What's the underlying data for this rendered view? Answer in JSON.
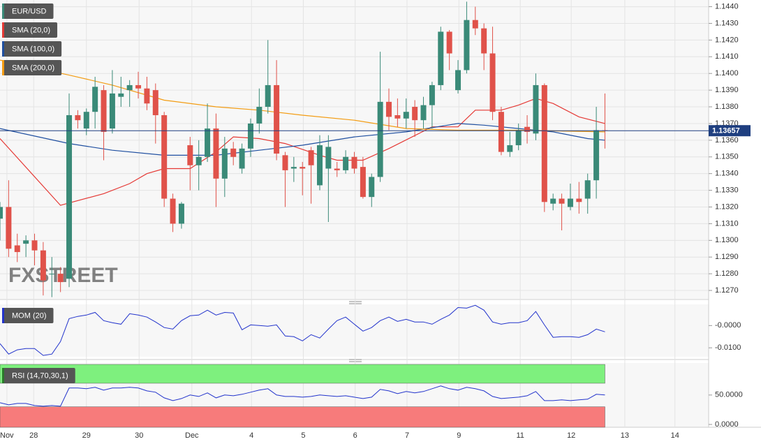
{
  "chart_data": [
    {
      "type": "candlestick",
      "name": "EUR/USD",
      "watermark": "FXSTREET",
      "up_color": "#3a8a78",
      "down_color": "#e0524a",
      "open": [
        1.1313,
        1.132,
        1.1297,
        1.1298,
        1.13,
        1.1294,
        1.128,
        1.128,
        1.1277,
        1.1375,
        1.1367,
        1.1377,
        1.139,
        1.1367,
        1.1386,
        1.139,
        1.1393,
        1.1391,
        1.139,
        1.1375,
        1.1325,
        1.131,
        1.1357,
        1.1345,
        1.135,
        1.1367,
        1.1337,
        1.1355,
        1.1343,
        1.1355,
        1.137,
        1.138,
        1.1393,
        1.1351,
        1.1343,
        1.1344,
        1.1354,
        1.1333,
        1.1343,
        1.1343,
        1.1342,
        1.135,
        1.1344,
        1.1326,
        1.1338,
        1.1383,
        1.1375,
        1.1373,
        1.138,
        1.1372,
        1.1381,
        1.1393,
        1.1425,
        1.139,
        1.1402,
        1.1432,
        1.1427,
        1.1412,
        1.1377,
        1.1353,
        1.1357,
        1.1368,
        1.1364,
        1.1393,
        1.1322,
        1.1325,
        1.132,
        1.1325,
        1.1325,
        1.1336,
        1.1366
      ],
      "high": [
        1.1323,
        1.1336,
        1.1304,
        1.1303,
        1.1304,
        1.1299,
        1.129,
        1.1284,
        1.1388,
        1.1378,
        1.1379,
        1.1398,
        1.1393,
        1.1402,
        1.1398,
        1.1396,
        1.1401,
        1.1398,
        1.1394,
        1.1377,
        1.1328,
        1.1323,
        1.1362,
        1.136,
        1.1382,
        1.1376,
        1.1362,
        1.1359,
        1.1358,
        1.1373,
        1.1391,
        1.142,
        1.1408,
        1.1353,
        1.135,
        1.1347,
        1.1356,
        1.1363,
        1.1363,
        1.1347,
        1.1354,
        1.1353,
        1.135,
        1.134,
        1.1413,
        1.1391,
        1.1385,
        1.1385,
        1.1384,
        1.1386,
        1.1395,
        1.1428,
        1.1426,
        1.1408,
        1.1443,
        1.144,
        1.143,
        1.1428,
        1.138,
        1.1365,
        1.137,
        1.1375,
        1.14,
        1.1394,
        1.1328,
        1.1328,
        1.1334,
        1.1335,
        1.134,
        1.138,
        1.1388
      ],
      "low": [
        1.13,
        1.129,
        1.1287,
        1.129,
        1.1285,
        1.1267,
        1.1266,
        1.1269,
        1.1272,
        1.1367,
        1.1363,
        1.1367,
        1.1348,
        1.1364,
        1.138,
        1.138,
        1.1385,
        1.1378,
        1.1358,
        1.132,
        1.1305,
        1.1307,
        1.133,
        1.133,
        1.1347,
        1.132,
        1.1326,
        1.1345,
        1.134,
        1.135,
        1.1364,
        1.1376,
        1.1348,
        1.132,
        1.1335,
        1.1327,
        1.1322,
        1.133,
        1.1311,
        1.1338,
        1.134,
        1.134,
        1.1325,
        1.132,
        1.1335,
        1.1366,
        1.1368,
        1.1367,
        1.1362,
        1.1367,
        1.1367,
        1.139,
        1.1402,
        1.1388,
        1.14,
        1.1423,
        1.1402,
        1.1372,
        1.1351,
        1.135,
        1.1354,
        1.1358,
        1.136,
        1.1317,
        1.1318,
        1.1306,
        1.1318,
        1.1316,
        1.1316,
        1.1325,
        1.1355
      ],
      "close": [
        1.132,
        1.1295,
        1.1293,
        1.13,
        1.1294,
        1.1276,
        1.128,
        1.1275,
        1.1375,
        1.1372,
        1.1377,
        1.1392,
        1.1365,
        1.1388,
        1.1388,
        1.1393,
        1.1391,
        1.1382,
        1.1375,
        1.1325,
        1.131,
        1.1322,
        1.1345,
        1.135,
        1.1367,
        1.1337,
        1.1355,
        1.135,
        1.1355,
        1.137,
        1.138,
        1.1393,
        1.1352,
        1.1342,
        1.1344,
        1.1343,
        1.1345,
        1.1357,
        1.1356,
        1.1342,
        1.135,
        1.1343,
        1.1326,
        1.1338,
        1.1383,
        1.1374,
        1.1373,
        1.1377,
        1.1372,
        1.1381,
        1.1393,
        1.1425,
        1.1412,
        1.1402,
        1.1432,
        1.1427,
        1.1412,
        1.1377,
        1.1353,
        1.1357,
        1.1366,
        1.1365,
        1.1393,
        1.1323,
        1.1325,
        1.1322,
        1.1325,
        1.1323,
        1.1336,
        1.1366,
        1.13657
      ],
      "series": [
        {
          "name": "SMA (20,0)",
          "color": "#e53935",
          "x": [
            0,
            7,
            12,
            15,
            17,
            19,
            22,
            25,
            27,
            30,
            33,
            37,
            39,
            42,
            45,
            50,
            53,
            55,
            58,
            60,
            62,
            64,
            67,
            70
          ],
          "values": [
            1.1361,
            1.1321,
            1.1328,
            1.1334,
            1.134,
            1.1343,
            1.1343,
            1.1353,
            1.1362,
            1.1361,
            1.1358,
            1.1351,
            1.1348,
            1.1348,
            1.1355,
            1.1368,
            1.1368,
            1.1378,
            1.1378,
            1.1381,
            1.1385,
            1.1382,
            1.1374,
            1.137
          ]
        },
        {
          "name": "SMA (100,0)",
          "color": "#1f4fa0",
          "x": [
            0,
            8,
            13,
            19,
            25,
            30,
            35,
            41,
            47,
            53,
            56,
            60,
            64,
            68,
            70
          ],
          "values": [
            1.1367,
            1.1358,
            1.1354,
            1.1351,
            1.1351,
            1.1354,
            1.1357,
            1.1362,
            1.1365,
            1.137,
            1.1369,
            1.1367,
            1.1365,
            1.1361,
            1.136
          ]
        },
        {
          "name": "SMA (200,0)",
          "color": "#f39c12",
          "x": [
            0,
            8,
            13,
            19,
            25,
            30,
            35,
            41,
            47,
            53,
            60,
            70
          ],
          "values": [
            1.1408,
            1.1399,
            1.1393,
            1.1384,
            1.138,
            1.1378,
            1.1375,
            1.1372,
            1.1367,
            1.1366,
            1.1366,
            1.1365
          ]
        }
      ],
      "last_price": 1.13657,
      "last_color": "#1f3f80",
      "xlim": [
        0,
        82
      ],
      "xticks": [
        {
          "value": 0.8,
          "label": "Nov"
        },
        {
          "value": 3.9,
          "label": "28"
        },
        {
          "value": 10,
          "label": "29"
        },
        {
          "value": 16.1,
          "label": "30"
        },
        {
          "value": 22.2,
          "label": "Dec"
        },
        {
          "value": 29.1,
          "label": "4"
        },
        {
          "value": 35.1,
          "label": "5"
        },
        {
          "value": 41.1,
          "label": "6"
        },
        {
          "value": 47.1,
          "label": "7"
        },
        {
          "value": 53.1,
          "label": "9"
        },
        {
          "value": 60.2,
          "label": "11"
        },
        {
          "value": 66.1,
          "label": "12"
        },
        {
          "value": 72.3,
          "label": "13"
        },
        {
          "value": 78.1,
          "label": "14"
        }
      ],
      "ylim": [
        1.1265,
        1.1444
      ],
      "yticks": [
        {
          "value": 1.127,
          "label": "1.1270"
        },
        {
          "value": 1.128,
          "label": "1.1280"
        },
        {
          "value": 1.129,
          "label": "1.1290"
        },
        {
          "value": 1.13,
          "label": "1.1300"
        },
        {
          "value": 1.131,
          "label": "1.1310"
        },
        {
          "value": 1.132,
          "label": "1.1320"
        },
        {
          "value": 1.133,
          "label": "1.1330"
        },
        {
          "value": 1.134,
          "label": "1.1340"
        },
        {
          "value": 1.135,
          "label": "1.1350"
        },
        {
          "value": 1.136,
          "label": "1.1360"
        },
        {
          "value": 1.137,
          "label": "1.1370"
        },
        {
          "value": 1.138,
          "label": "1.1380"
        },
        {
          "value": 1.139,
          "label": "1.1390"
        },
        {
          "value": 1.14,
          "label": "1.1400"
        },
        {
          "value": 1.141,
          "label": "1.1410"
        },
        {
          "value": 1.142,
          "label": "1.1420"
        },
        {
          "value": 1.143,
          "label": "1.1430"
        },
        {
          "value": 1.144,
          "label": "1.1440"
        }
      ]
    },
    {
      "type": "line",
      "name": "MOM (20)",
      "color": "#2233cc",
      "values": [
        -0.0081,
        -0.0128,
        -0.0109,
        -0.0103,
        -0.0103,
        -0.0134,
        -0.0128,
        -0.0072,
        0.0031,
        0.0041,
        0.0047,
        0.0059,
        0.0022,
        0.0013,
        0.0006,
        0.0053,
        0.0047,
        0.0038,
        0.0016,
        -0.0009,
        -0.0016,
        0.0022,
        0.0044,
        0.0047,
        0.0069,
        0.0047,
        0.0059,
        0.0056,
        -0.0019,
        0.0003,
        0.0,
        -0.0003,
        0.0003,
        -0.0047,
        -0.005,
        -0.0069,
        -0.0041,
        -0.0056,
        -0.0016,
        0.0022,
        0.0038,
        0.0006,
        -0.0025,
        -0.0009,
        0.0022,
        0.0038,
        0.0019,
        0.0028,
        0.0016,
        0.0016,
        0.0006,
        0.0028,
        0.0047,
        0.0081,
        0.0078,
        0.0091,
        0.0069,
        0.0016,
        0.0006,
        0.0013,
        0.0013,
        0.0022,
        0.0063,
        0.0003,
        -0.0053,
        -0.005,
        -0.005,
        -0.0053,
        -0.0041,
        -0.0016,
        -0.0028
      ],
      "ylim": [
        -0.014,
        0.0095
      ],
      "yticks": [
        {
          "value": 0,
          "label": "-0.0000"
        },
        {
          "value": -0.01,
          "label": "-0.0100"
        }
      ]
    },
    {
      "type": "line",
      "name": "RSI (14,70,30,1)",
      "color": "#2233cc",
      "values": [
        36.9,
        33.3,
        35.7,
        35.7,
        32.1,
        31.0,
        32.1,
        31.0,
        61.9,
        61.9,
        60.7,
        63.1,
        58.3,
        61.9,
        61.9,
        63.1,
        61.9,
        57.1,
        54.8,
        45.2,
        40.5,
        44.0,
        50.0,
        47.6,
        53.6,
        45.2,
        50.0,
        48.8,
        51.2,
        54.8,
        58.3,
        60.7,
        50.0,
        47.6,
        47.6,
        46.4,
        47.6,
        50.0,
        48.8,
        47.6,
        48.8,
        46.4,
        44.0,
        46.4,
        59.5,
        57.1,
        52.4,
        56.0,
        53.6,
        56.0,
        60.7,
        65.5,
        60.7,
        58.3,
        63.1,
        60.7,
        57.1,
        47.6,
        44.0,
        45.2,
        46.4,
        48.8,
        56.0,
        40.5,
        40.5,
        41.7,
        40.5,
        41.7,
        42.9,
        51.2,
        50.0
      ],
      "bands": [
        {
          "from": 70,
          "color": "#7ef07e"
        },
        {
          "to": 30,
          "color": "#f77b7b"
        }
      ],
      "ylim": [
        0,
        102
      ],
      "yticks": [
        {
          "value": 50,
          "label": "50.0000"
        },
        {
          "value": 0,
          "label": "0.0000"
        }
      ]
    }
  ]
}
